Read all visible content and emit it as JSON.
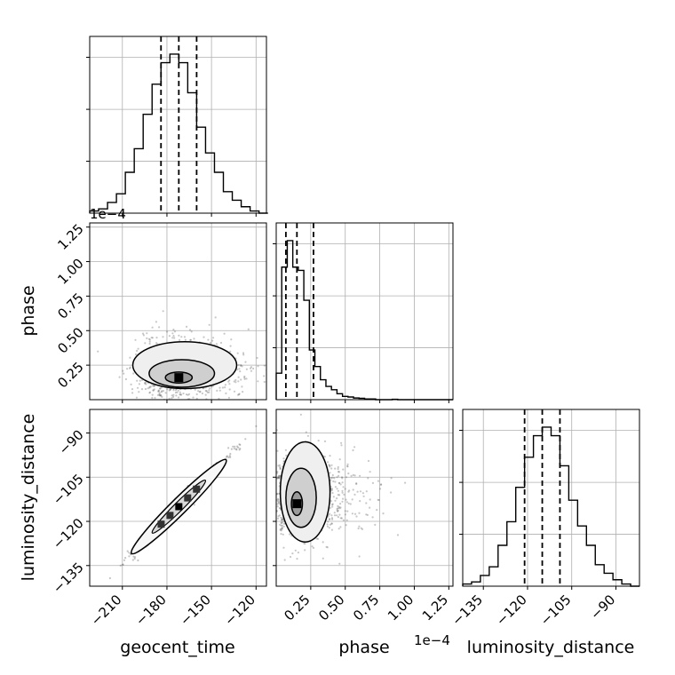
{
  "chart_data": {
    "type": "corner",
    "parameters": [
      "geocent_time",
      "phase",
      "luminosity_distance"
    ],
    "axis_labels": {
      "x": [
        "geocent_time",
        "phase",
        "luminosity_distance"
      ],
      "y": [
        "",
        "phase",
        "luminosity_distance"
      ]
    },
    "offset_text": "1e−4",
    "ranges": [
      [
        -232,
        -113
      ],
      [
        0.0,
        1.28
      ],
      [
        -142,
        -82
      ]
    ],
    "ticks": [
      [
        -210,
        -180,
        -150,
        -120
      ],
      [
        0.25,
        0.5,
        0.75,
        1.0,
        1.25
      ],
      [
        -135,
        -120,
        -105,
        -90
      ]
    ],
    "tick_labels": [
      [
        "−210",
        "−180",
        "−150",
        "−120"
      ],
      [
        "0.25",
        "0.50",
        "0.75",
        "1.00",
        "1.25"
      ],
      [
        "−135",
        "−120",
        "−105",
        "−90"
      ]
    ],
    "grid": true,
    "histograms": [
      {
        "parameter": "geocent_time",
        "bin_edges": [
          -232,
          -226,
          -220,
          -214,
          -208,
          -202,
          -196,
          -190,
          -184,
          -178,
          -172,
          -166,
          -160,
          -154,
          -148,
          -142,
          -136,
          -130,
          -124,
          -118,
          -112
        ],
        "counts": [
          1,
          2,
          5,
          9,
          19,
          30,
          46,
          60,
          70,
          74,
          70,
          56,
          40,
          28,
          19,
          10,
          6,
          3,
          1,
          0
        ],
        "quantiles": [
          -184,
          -172,
          -160
        ]
      },
      {
        "parameter": "phase",
        "bin_edges": [
          0.0,
          0.04,
          0.08,
          0.12,
          0.16,
          0.2,
          0.24,
          0.28,
          0.32,
          0.36,
          0.4,
          0.44,
          0.48,
          0.52,
          0.56,
          0.6,
          0.64,
          0.68,
          0.72,
          0.76,
          0.8,
          0.84,
          0.88,
          0.92,
          0.96,
          1.0,
          1.04,
          1.08,
          1.12,
          1.16,
          1.2,
          1.24,
          1.28
        ],
        "counts": [
          8,
          40,
          48,
          40,
          39,
          30,
          15,
          10,
          6,
          4,
          3,
          1.8,
          1.0,
          0.8,
          0.5,
          0.4,
          0.2,
          0.2,
          0,
          0,
          0,
          0.1,
          0,
          0,
          0,
          0,
          0,
          0,
          0,
          0,
          0,
          0
        ],
        "quantiles": [
          0.07,
          0.15,
          0.27
        ]
      },
      {
        "parameter": "luminosity_distance",
        "bin_edges": [
          -142,
          -139,
          -136,
          -133,
          -130,
          -127,
          -124,
          -121,
          -118,
          -115,
          -112,
          -109,
          -106,
          -103,
          -100,
          -97,
          -94,
          -91,
          -88,
          -85,
          -82
        ],
        "counts": [
          1,
          2,
          5,
          9,
          19,
          30,
          46,
          60,
          70,
          74,
          70,
          56,
          40,
          28,
          19,
          10,
          6,
          3,
          1,
          0
        ],
        "quantiles": [
          -121,
          -115,
          -109
        ]
      }
    ],
    "scatter_panels": [
      {
        "x": "geocent_time",
        "y": "phase",
        "peak": {
          "x": -172,
          "y": 0.16
        },
        "contours": [
          {
            "level": 1,
            "center": [
              -172,
              0.16
            ],
            "half_widths": [
              9,
              0.04
            ]
          },
          {
            "level": 2,
            "center": [
              -170,
              0.19
            ],
            "half_widths": [
              22,
              0.1
            ]
          },
          {
            "level": 3,
            "center": [
              -168,
              0.25
            ],
            "half_widths": [
              35,
              0.17
            ]
          }
        ]
      },
      {
        "x": "geocent_time",
        "y": "luminosity_distance",
        "correlation": 0.99,
        "peak": {
          "x": -172,
          "y": -115
        },
        "contours": [
          {
            "level": 1,
            "center": [
              -172,
              -115
            ],
            "along_axis": [
              -190,
              -154
            ]
          },
          {
            "level": 2,
            "center": [
              -172,
              -115
            ],
            "along_axis": [
              -204,
              -140
            ]
          }
        ]
      },
      {
        "x": "phase",
        "y": "luminosity_distance",
        "peak": {
          "x": 0.15,
          "y": -114
        },
        "contours": [
          {
            "level": 1,
            "center": [
              0.15,
              -114
            ],
            "half_widths": [
              0.04,
              4
            ]
          },
          {
            "level": 2,
            "center": [
              0.18,
              -112
            ],
            "half_widths": [
              0.11,
              10
            ]
          },
          {
            "level": 3,
            "center": [
              0.21,
              -110
            ],
            "half_widths": [
              0.18,
              17
            ]
          }
        ]
      }
    ]
  }
}
